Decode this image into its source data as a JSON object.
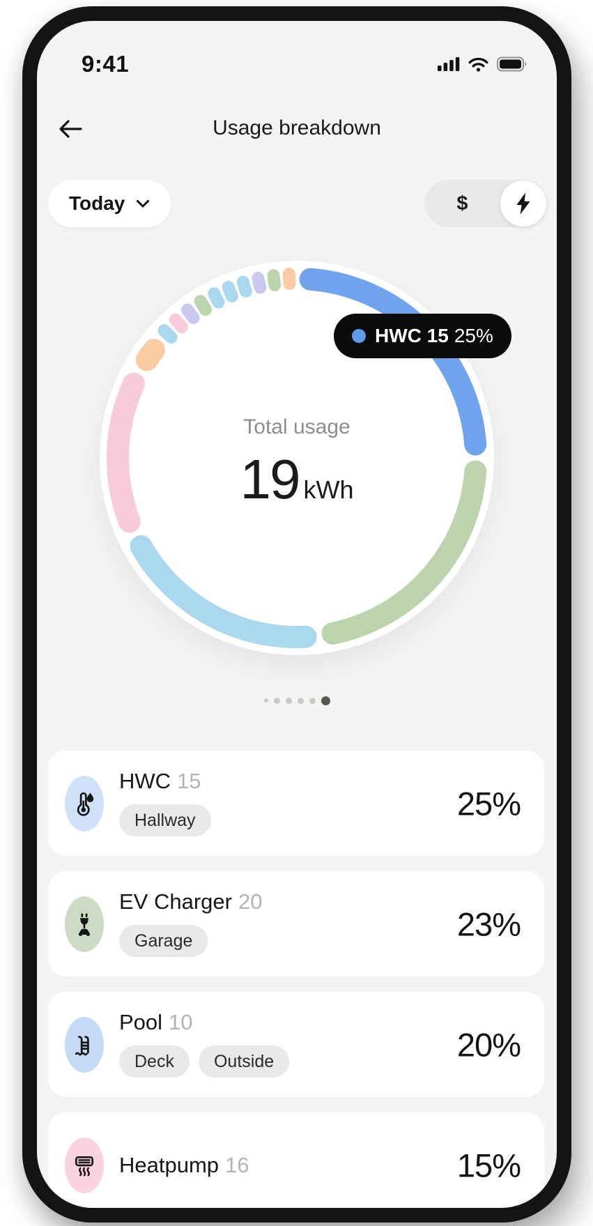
{
  "status_bar": {
    "time": "9:41"
  },
  "header": {
    "title": "Usage breakdown"
  },
  "controls": {
    "period_label": "Today",
    "period_icon": "chevron-down-icon",
    "currency_symbol": "$",
    "energy_icon": "lightning-bolt-icon",
    "active_toggle": "energy"
  },
  "chart_data": {
    "type": "donut",
    "title": "Total usage",
    "total_value": "19",
    "total_unit": "kWh",
    "legend_position": "tooltip",
    "tooltip": {
      "label": "HWC",
      "value": "15",
      "percent": "25%",
      "dot_color": "#5E9BEA"
    },
    "segments": [
      {
        "name": "HWC",
        "percent": 25,
        "color": "#6FA3ED"
      },
      {
        "name": "EV Charger",
        "percent": 23,
        "color": "#BBD4AE"
      },
      {
        "name": "Pool",
        "percent": 20,
        "color": "#A9D8EF"
      },
      {
        "name": "Heatpump",
        "percent": 15,
        "color": "#F9CADA"
      },
      {
        "name": "other",
        "percent": 3.5,
        "color": "#F8CBA2"
      },
      {
        "name": "other",
        "percent": 1.35,
        "color": "#A9D8EF"
      },
      {
        "name": "other",
        "percent": 1.35,
        "color": "#F9CADA"
      },
      {
        "name": "other",
        "percent": 1.35,
        "color": "#CBC8EE"
      },
      {
        "name": "other",
        "percent": 1.35,
        "color": "#BBD4AE"
      },
      {
        "name": "other",
        "percent": 1.35,
        "color": "#A9D8EF"
      },
      {
        "name": "other",
        "percent": 1.35,
        "color": "#A9D8EF"
      },
      {
        "name": "other",
        "percent": 1.35,
        "color": "#A9D8EF"
      },
      {
        "name": "other",
        "percent": 1.35,
        "color": "#CBC8EE"
      },
      {
        "name": "other",
        "percent": 1.35,
        "color": "#BBD4AE"
      },
      {
        "name": "other",
        "percent": 1.35,
        "color": "#F8CBA2"
      }
    ]
  },
  "pagination": {
    "count": 6,
    "active_index": 5,
    "inactive_color": "#c7ccc4",
    "active_color": "#55584f"
  },
  "devices": [
    {
      "name": "HWC",
      "value": "15",
      "percent": "25%",
      "locations": [
        "Hallway"
      ],
      "icon": "thermometer-droplet-icon",
      "icon_bg": "#CEE1F8"
    },
    {
      "name": "EV Charger",
      "value": "20",
      "percent": "23%",
      "locations": [
        "Garage"
      ],
      "icon": "ev-plug-icon",
      "icon_bg": "#CCDCC4"
    },
    {
      "name": "Pool",
      "value": "10",
      "percent": "20%",
      "locations": [
        "Deck",
        "Outside"
      ],
      "icon": "pool-ladder-icon",
      "icon_bg": "#C4DAF7"
    },
    {
      "name": "Heatpump",
      "value": "16",
      "percent": "15%",
      "locations": [],
      "icon": "heatpump-icon",
      "icon_bg": "#FAD3DF"
    }
  ]
}
